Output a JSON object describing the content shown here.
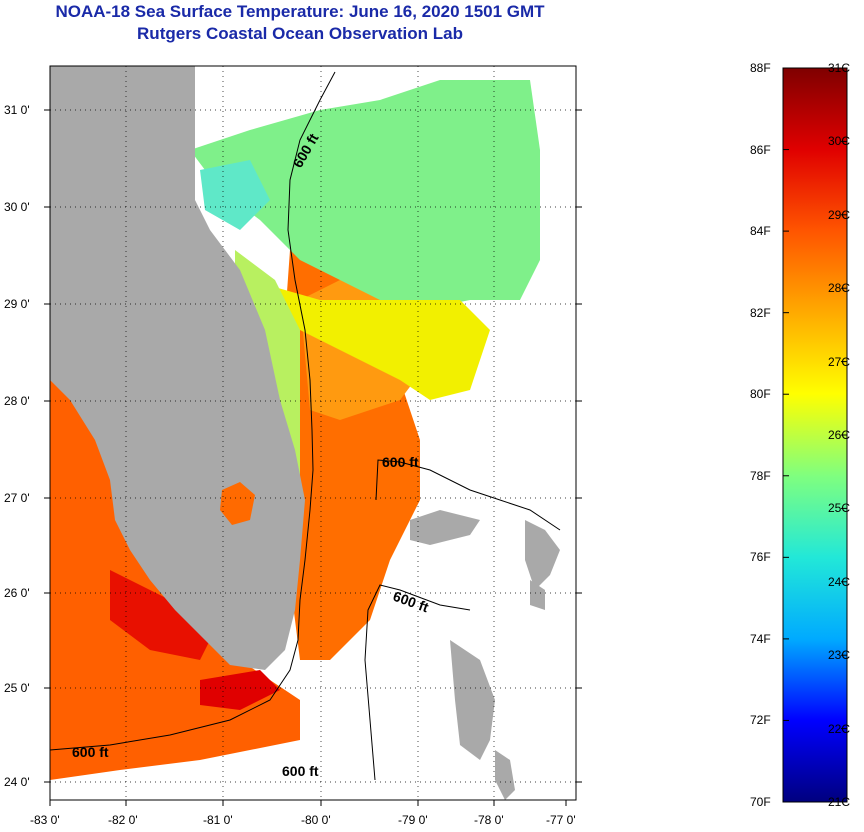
{
  "header": {
    "title": "NOAA-18 Sea Surface Temperature:  June 16, 2020 1501 GMT",
    "subtitle": "Rutgers Coastal Ocean Observation Lab"
  },
  "axes": {
    "lat_ticks": [
      "31 0'",
      "30 0'",
      "29 0'",
      "28 0'",
      "27 0'",
      "26 0'",
      "25 0'",
      "24 0'"
    ],
    "lon_ticks": [
      "-83 0'",
      "-82 0'",
      "-81 0'",
      "-80 0'",
      "-79 0'",
      "-78 0'",
      "-77 0'"
    ]
  },
  "isobath_label": "600 ft",
  "colorbar": {
    "f_labels": [
      "88F",
      "86F",
      "84F",
      "82F",
      "80F",
      "78F",
      "76F",
      "74F",
      "72F",
      "70F"
    ],
    "c_labels": [
      "31C",
      "30C",
      "29C",
      "28C",
      "27C",
      "26C",
      "25C",
      "24C",
      "23C",
      "22C",
      "21C"
    ],
    "range_c": [
      21,
      31
    ],
    "colors": [
      "#00007f",
      "#0000ff",
      "#00aaff",
      "#22e8d8",
      "#7fff7f",
      "#ffff00",
      "#ffaa00",
      "#ff5500",
      "#e00000",
      "#7f0000"
    ]
  },
  "colors": {
    "land": "#a9a9a9",
    "title": "#1a2aa8"
  }
}
